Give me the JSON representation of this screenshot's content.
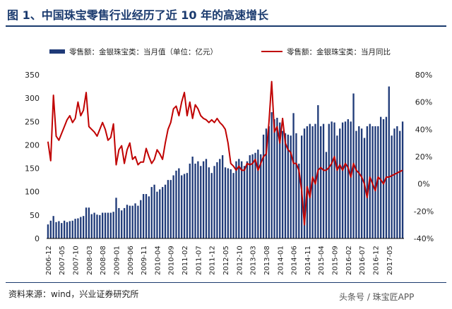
{
  "title": "图 1、中国珠宝零售行业经历了近 10 年的高速增长",
  "source": "资料来源：wind，兴业证券研究所",
  "watermark": "头条号 / 珠宝匠APP",
  "chart_data": {
    "type": "bar+line",
    "title": "图 1、中国珠宝零售行业经历了近 10 年的高速增长",
    "legend_position": "top",
    "y_left": {
      "min": 0,
      "max": 350,
      "ticks": [
        "0",
        "50",
        "100",
        "150",
        "200",
        "250",
        "300",
        "350"
      ]
    },
    "y_right": {
      "min": -40,
      "max": 80,
      "ticks": [
        "-40%",
        "-20%",
        "0%",
        "20%",
        "40%",
        "60%",
        "80%"
      ]
    },
    "x_tick_labels": [
      "2006-12",
      "2007-05",
      "2007-10",
      "2008-03",
      "2008-08",
      "2009-01",
      "2009-06",
      "2009-11",
      "2010-04",
      "2010-09",
      "2011-02",
      "2011-07",
      "2011-12",
      "2012-05",
      "2012-10",
      "2013-03",
      "2013-08",
      "2014-01",
      "2014-06",
      "2014-11",
      "2015-04",
      "2015-09",
      "2016-02",
      "2016-07",
      "2016-12",
      "2017-05"
    ],
    "series": [
      {
        "name": "零售额：金银珠宝类：当月值（单位：亿元）",
        "type": "bar",
        "axis": "left",
        "color": "#1f3a78",
        "values": [
          30,
          38,
          48,
          35,
          37,
          33,
          38,
          35,
          37,
          38,
          42,
          43,
          46,
          48,
          66,
          66,
          52,
          55,
          51,
          50,
          55,
          55,
          55,
          55,
          57,
          87,
          65,
          60,
          65,
          72,
          70,
          70,
          75,
          70,
          82,
          95,
          95,
          90,
          110,
          115,
          100,
          105,
          110,
          115,
          125,
          125,
          135,
          145,
          150,
          135,
          138,
          140,
          160,
          175,
          160,
          165,
          155,
          165,
          170,
          152,
          140,
          155,
          163,
          170,
          178,
          152,
          150,
          148,
          140,
          165,
          170,
          165,
          155,
          165,
          178,
          180,
          183,
          190,
          180,
          222,
          235,
          240,
          270,
          255,
          258,
          248,
          230,
          225,
          222,
          220,
          268,
          225,
          160,
          220,
          235,
          240,
          245,
          240,
          245,
          285,
          240,
          245,
          185,
          245,
          250,
          248,
          220,
          235,
          248,
          250,
          255,
          250,
          310,
          230,
          240,
          235,
          215,
          240,
          245,
          240,
          240,
          240,
          260,
          255,
          260,
          325,
          220,
          235,
          240,
          230,
          250
        ]
      },
      {
        "name": "零售额：金银珠宝类：当月同比",
        "type": "line",
        "axis": "right",
        "color": "#c00000",
        "values": [
          31,
          17,
          65,
          35,
          32,
          37,
          42,
          47,
          50,
          45,
          48,
          60,
          50,
          54,
          67,
          42,
          40,
          38,
          35,
          40,
          45,
          40,
          32,
          34,
          44,
          14,
          25,
          28,
          15,
          25,
          30,
          18,
          20,
          14,
          16,
          16,
          26,
          20,
          15,
          18,
          25,
          22,
          18,
          30,
          40,
          45,
          55,
          57,
          50,
          60,
          67,
          50,
          60,
          48,
          58,
          55,
          50,
          48,
          47,
          45,
          47,
          45,
          48,
          45,
          43,
          40,
          30,
          15,
          13,
          10,
          13,
          10,
          10,
          15,
          14,
          15,
          18,
          10,
          15,
          20,
          22,
          45,
          75,
          38,
          42,
          30,
          48,
          30,
          25,
          23,
          15,
          15,
          10,
          -5,
          -30,
          -2,
          -10,
          5,
          0,
          10,
          12,
          10,
          10,
          12,
          15,
          20,
          10,
          14,
          10,
          15,
          12,
          5,
          15,
          10,
          8,
          5,
          0,
          -10,
          5,
          0,
          -5,
          5,
          3,
          0,
          5,
          5,
          6,
          7,
          8,
          9,
          10
        ]
      }
    ]
  }
}
